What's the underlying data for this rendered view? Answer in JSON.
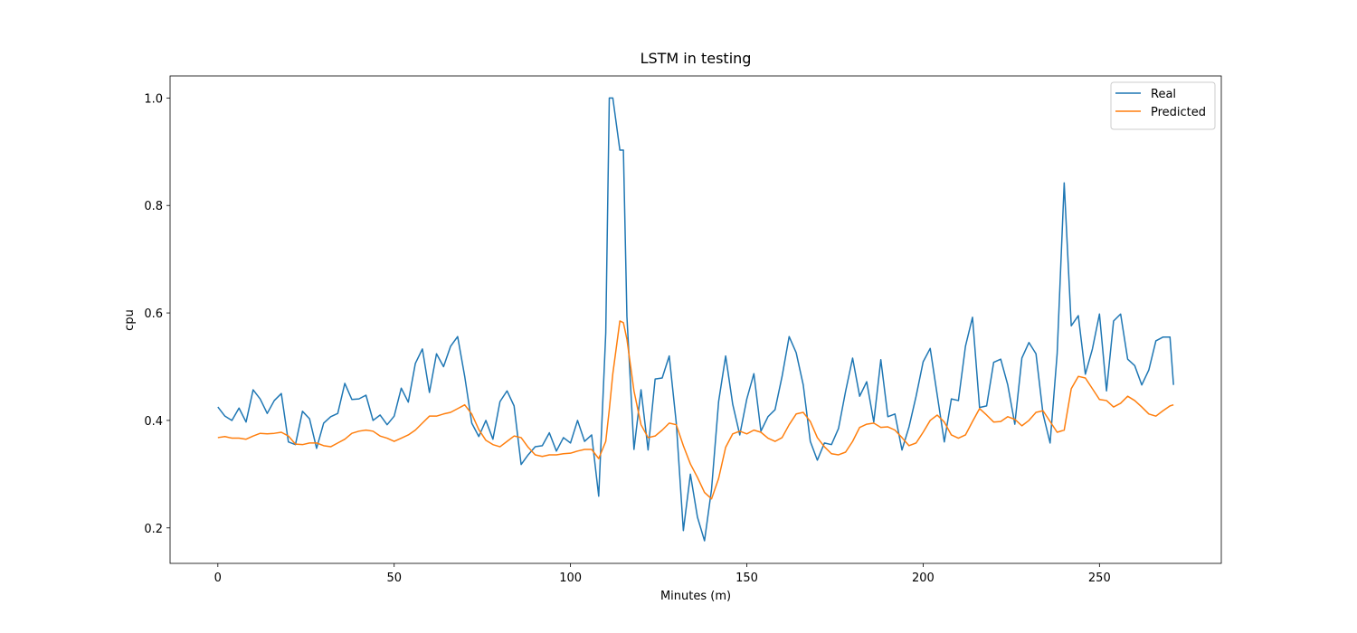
{
  "chart_data": {
    "type": "line",
    "title": "LSTM in testing",
    "x_label": "Minutes (m)",
    "y_label": "cpu",
    "x": [
      0,
      2,
      4,
      6,
      8,
      10,
      12,
      14,
      16,
      18,
      20,
      22,
      24,
      26,
      28,
      30,
      32,
      34,
      36,
      38,
      40,
      42,
      44,
      46,
      48,
      50,
      52,
      54,
      56,
      58,
      60,
      62,
      64,
      66,
      68,
      70,
      72,
      74,
      76,
      78,
      80,
      82,
      84,
      86,
      88,
      90,
      92,
      94,
      96,
      98,
      100,
      102,
      104,
      106,
      108,
      110,
      111,
      112,
      114,
      115,
      116,
      118,
      120,
      122,
      124,
      126,
      128,
      130,
      132,
      134,
      136,
      138,
      140,
      142,
      144,
      146,
      148,
      150,
      152,
      154,
      156,
      158,
      160,
      162,
      164,
      166,
      168,
      170,
      172,
      174,
      176,
      178,
      180,
      182,
      184,
      186,
      188,
      190,
      192,
      194,
      196,
      198,
      200,
      202,
      204,
      206,
      208,
      210,
      212,
      214,
      216,
      218,
      220,
      222,
      224,
      226,
      228,
      230,
      232,
      234,
      236,
      238,
      240,
      242,
      244,
      246,
      248,
      250,
      252,
      254,
      256,
      258,
      260,
      262,
      264,
      266,
      268,
      270,
      271
    ],
    "series": [
      {
        "name": "Real",
        "color": "#1f77b4",
        "values": [
          0.425,
          0.408,
          0.4,
          0.423,
          0.397,
          0.457,
          0.44,
          0.413,
          0.437,
          0.45,
          0.36,
          0.355,
          0.417,
          0.403,
          0.348,
          0.395,
          0.407,
          0.413,
          0.469,
          0.439,
          0.44,
          0.447,
          0.4,
          0.41,
          0.392,
          0.408,
          0.46,
          0.434,
          0.506,
          0.533,
          0.452,
          0.524,
          0.5,
          0.538,
          0.556,
          0.482,
          0.395,
          0.37,
          0.4,
          0.365,
          0.435,
          0.455,
          0.427,
          0.318,
          0.336,
          0.351,
          0.353,
          0.377,
          0.343,
          0.368,
          0.358,
          0.4,
          0.361,
          0.373,
          0.259,
          0.563,
          1.0,
          1.0,
          0.903,
          0.903,
          0.593,
          0.346,
          0.457,
          0.345,
          0.477,
          0.479,
          0.52,
          0.395,
          0.195,
          0.3,
          0.22,
          0.176,
          0.272,
          0.435,
          0.52,
          0.43,
          0.373,
          0.44,
          0.487,
          0.38,
          0.407,
          0.42,
          0.482,
          0.556,
          0.526,
          0.466,
          0.361,
          0.326,
          0.358,
          0.355,
          0.385,
          0.454,
          0.516,
          0.445,
          0.472,
          0.397,
          0.513,
          0.407,
          0.412,
          0.345,
          0.388,
          0.445,
          0.509,
          0.534,
          0.447,
          0.36,
          0.44,
          0.437,
          0.538,
          0.592,
          0.424,
          0.427,
          0.508,
          0.514,
          0.466,
          0.393,
          0.516,
          0.545,
          0.524,
          0.412,
          0.358,
          0.524,
          0.842,
          0.576,
          0.595,
          0.486,
          0.533,
          0.598,
          0.455,
          0.585,
          0.598,
          0.514,
          0.502,
          0.466,
          0.494,
          0.548,
          0.555,
          0.555,
          0.466
        ]
      },
      {
        "name": "Predicted",
        "color": "#ff7f0e",
        "values": [
          0.368,
          0.37,
          0.367,
          0.367,
          0.365,
          0.371,
          0.376,
          0.375,
          0.376,
          0.378,
          0.371,
          0.356,
          0.355,
          0.358,
          0.358,
          0.353,
          0.351,
          0.358,
          0.365,
          0.376,
          0.38,
          0.382,
          0.38,
          0.371,
          0.367,
          0.361,
          0.367,
          0.373,
          0.382,
          0.395,
          0.408,
          0.408,
          0.412,
          0.415,
          0.422,
          0.429,
          0.412,
          0.383,
          0.363,
          0.355,
          0.351,
          0.361,
          0.371,
          0.368,
          0.35,
          0.336,
          0.333,
          0.336,
          0.336,
          0.338,
          0.339,
          0.343,
          0.346,
          0.346,
          0.329,
          0.361,
          0.42,
          0.487,
          0.585,
          0.582,
          0.551,
          0.455,
          0.392,
          0.368,
          0.371,
          0.382,
          0.395,
          0.392,
          0.353,
          0.319,
          0.294,
          0.266,
          0.254,
          0.292,
          0.35,
          0.375,
          0.38,
          0.375,
          0.382,
          0.378,
          0.367,
          0.361,
          0.368,
          0.392,
          0.412,
          0.415,
          0.398,
          0.368,
          0.351,
          0.338,
          0.336,
          0.341,
          0.361,
          0.387,
          0.393,
          0.395,
          0.387,
          0.388,
          0.382,
          0.368,
          0.353,
          0.358,
          0.378,
          0.4,
          0.41,
          0.397,
          0.373,
          0.367,
          0.373,
          0.398,
          0.422,
          0.41,
          0.397,
          0.398,
          0.407,
          0.402,
          0.39,
          0.4,
          0.415,
          0.418,
          0.398,
          0.378,
          0.382,
          0.459,
          0.482,
          0.479,
          0.459,
          0.439,
          0.437,
          0.425,
          0.432,
          0.445,
          0.437,
          0.425,
          0.412,
          0.408,
          0.418,
          0.427,
          0.429
        ]
      }
    ],
    "xlim": [
      -13.55,
      284.55
    ],
    "ylim": [
      0.134,
      1.041
    ],
    "xticks": [
      0,
      50,
      100,
      150,
      200,
      250
    ],
    "yticks": [
      0.2,
      0.4,
      0.6,
      0.8,
      {
        "value": 1,
        "label": "1.0"
      }
    ],
    "legend": "upper right",
    "grid": false
  }
}
